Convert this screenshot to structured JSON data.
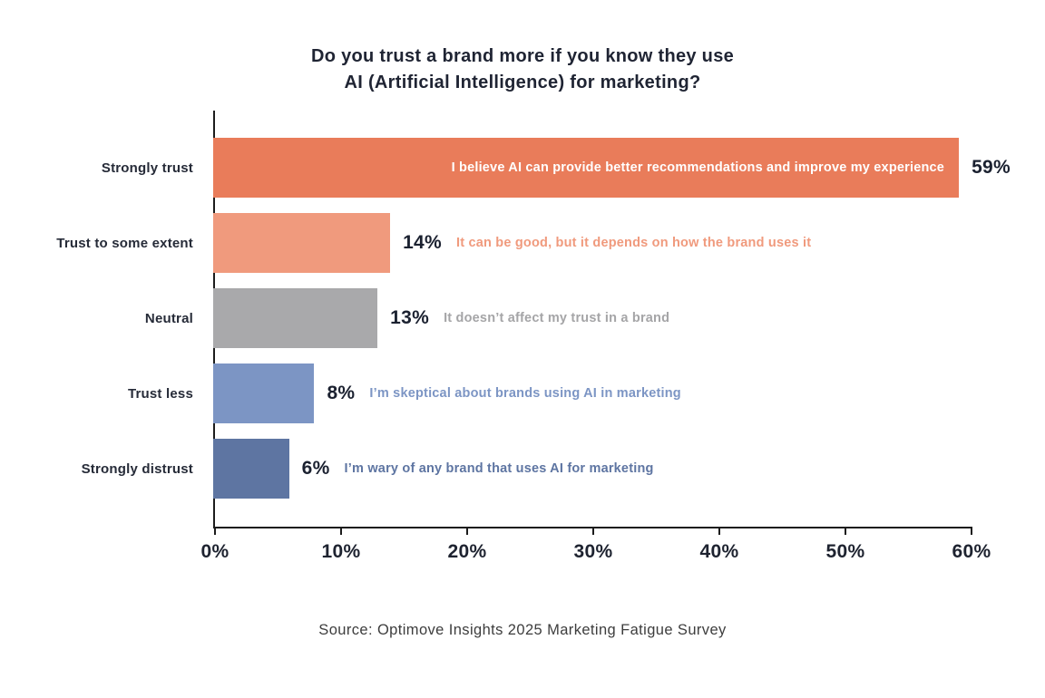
{
  "title": {
    "line1": "Do you trust a brand more if you know they use",
    "line2": "AI (Artificial Intelligence) for marketing?"
  },
  "source": "Source: Optimove Insights 2025 Marketing Fatigue Survey",
  "chart_data": {
    "type": "bar",
    "orientation": "horizontal",
    "title": "Do you trust a brand more if you know they use AI (Artificial Intelligence) for marketing?",
    "categories": [
      "Strongly trust",
      "Trust to some extent",
      "Neutral",
      "Trust less",
      "Strongly distrust"
    ],
    "values": [
      59,
      14,
      13,
      8,
      6
    ],
    "value_labels": [
      "59%",
      "14%",
      "13%",
      "8%",
      "6%"
    ],
    "annotations": [
      "I believe AI can provide better recommendations and improve my experience",
      "It can be good, but it depends on how the brand uses it",
      "It doesn’t affect my trust in a brand",
      "I’m skeptical about brands using AI in marketing",
      "I’m wary of any brand that uses AI for marketing"
    ],
    "annotation_placement": [
      "inside",
      "outside",
      "outside",
      "outside",
      "outside"
    ],
    "bar_colors": [
      "#E97C5A",
      "#F09A7D",
      "#A9A9AB",
      "#7C95C4",
      "#5E75A2"
    ],
    "annotation_colors": [
      "#FFFFFF",
      "#F09A7D",
      "#A5A5A7",
      "#7C95C4",
      "#5E75A2"
    ],
    "xlabel": "",
    "ylabel": "",
    "x_ticks": [
      "0%",
      "10%",
      "20%",
      "30%",
      "40%",
      "50%",
      "60%"
    ],
    "xlim": [
      0,
      60
    ],
    "grid": false,
    "legend": false
  }
}
